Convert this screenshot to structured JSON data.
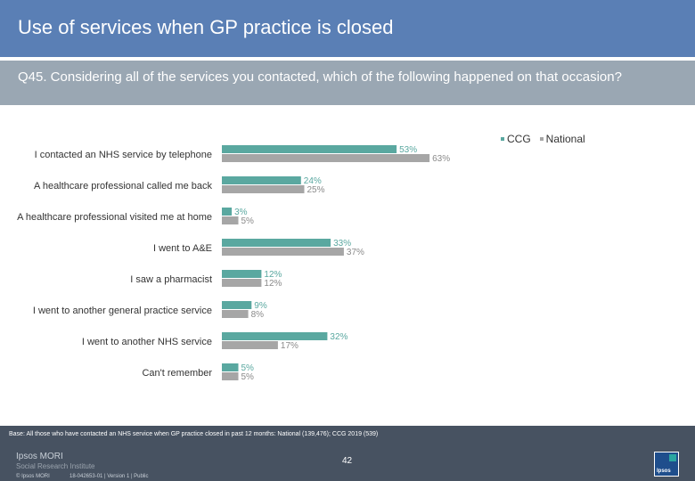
{
  "header": {
    "title": "Use of services when GP practice is closed"
  },
  "question": {
    "text": "Q45. Considering all of the services you contacted, which of the following happened on that occasion?"
  },
  "colors": {
    "ccg": "#5aa8a0",
    "national": "#a6a6a6",
    "header_bg": "#5a7fb5",
    "question_bg": "#9aa7b3",
    "footer_bg": "#475261"
  },
  "chart_data": {
    "type": "bar",
    "orientation": "horizontal",
    "categories": [
      "I contacted an NHS service by telephone",
      "A healthcare professional called me back",
      "A healthcare professional visited me at home",
      "I went to A&E",
      "I saw a pharmacist",
      "I went to another general practice service",
      "I went to another NHS service",
      "Can't remember"
    ],
    "series": [
      {
        "name": "CCG",
        "values": [
          53,
          24,
          3,
          33,
          12,
          9,
          32,
          5
        ],
        "labels": [
          "53%",
          "24%",
          "3%",
          "33%",
          "12%",
          "9%",
          "32%",
          "5%"
        ]
      },
      {
        "name": "National",
        "values": [
          63,
          25,
          5,
          37,
          12,
          8,
          17,
          5
        ],
        "labels": [
          "63%",
          "25%",
          "5%",
          "37%",
          "12%",
          "8%",
          "17%",
          "5%"
        ]
      }
    ],
    "legend": [
      "CCG",
      "National"
    ],
    "xlim": [
      0,
      100
    ],
    "unit": "%"
  },
  "footer": {
    "base": "Base: All those who have contacted an NHS service when GP practice closed in past 12 months: National (139,476); CCG 2019 (539)",
    "brand_line1": "Ipsos MORI",
    "brand_line2": "Social Research Institute",
    "copyright": "© Ipsos MORI",
    "job": "18-042653-01 | Version 1 | Public",
    "page_number": "42",
    "logo_text": "Ipsos"
  }
}
